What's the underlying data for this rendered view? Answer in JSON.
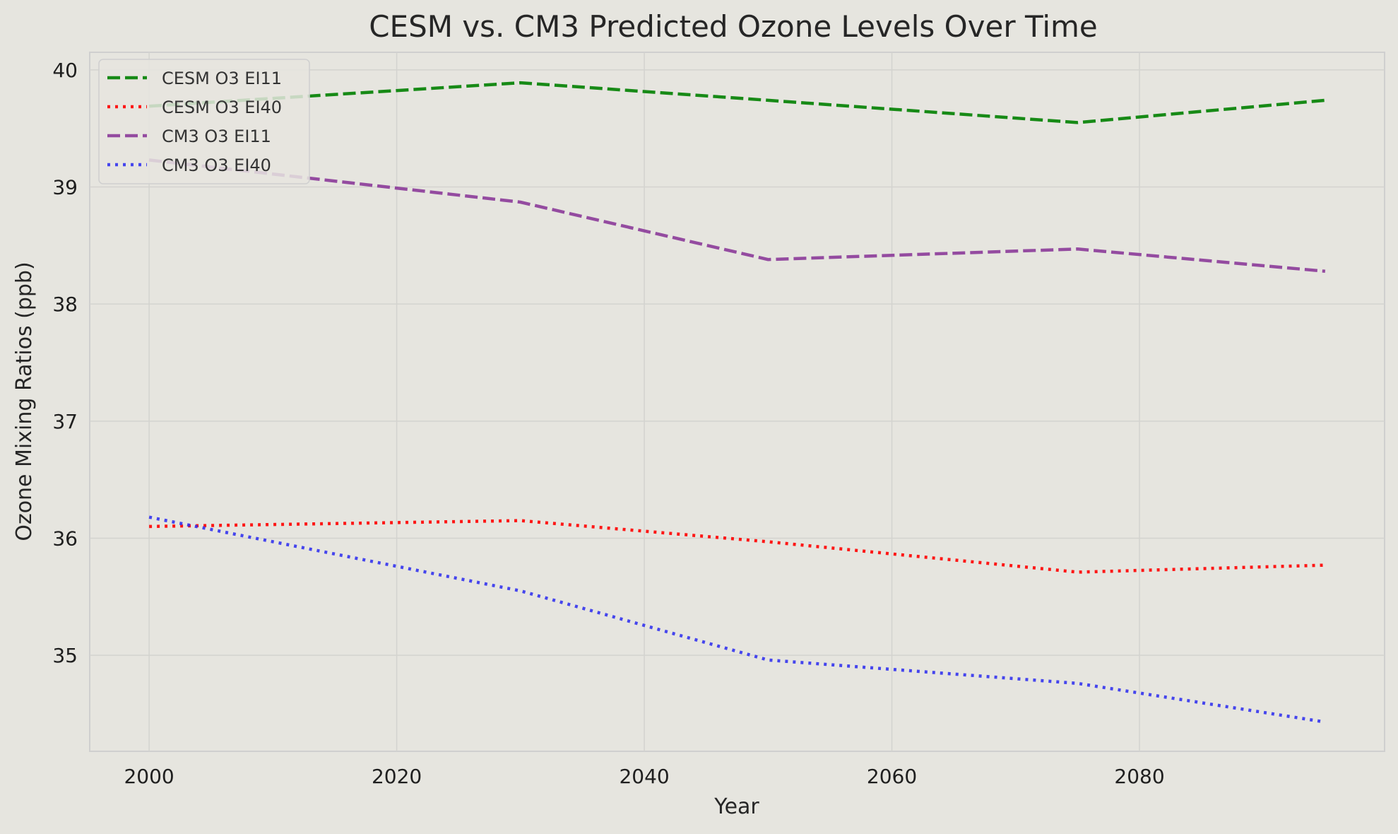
{
  "chart_data": {
    "type": "line",
    "title": "CESM vs. CM3 Predicted Ozone Levels Over Time",
    "xlabel": "Year",
    "ylabel": "Ozone Mixing Ratios (ppb)",
    "x": [
      2000,
      2030,
      2050,
      2075,
      2095
    ],
    "xlim": [
      1995.2,
      2099.8
    ],
    "ylim": [
      34.18,
      40.15
    ],
    "xticks": [
      2000,
      2020,
      2040,
      2060,
      2080
    ],
    "yticks": [
      35,
      36,
      37,
      38,
      39,
      40
    ],
    "grid": true,
    "legend_position": "top-left",
    "series": [
      {
        "name": "CESM O3 EI11",
        "values": [
          39.69,
          39.89,
          39.74,
          39.55,
          39.74
        ],
        "color": "#008000",
        "style": "dashed"
      },
      {
        "name": "CESM O3 EI40",
        "values": [
          36.1,
          36.15,
          35.97,
          35.71,
          35.77
        ],
        "color": "#ff0000",
        "style": "dotted"
      },
      {
        "name": "CM3 O3 EI11",
        "values": [
          39.23,
          38.87,
          38.38,
          38.47,
          38.28
        ],
        "color": "#8b3a99",
        "style": "dashed"
      },
      {
        "name": "CM3 O3 EI40",
        "values": [
          36.18,
          35.55,
          34.96,
          34.76,
          34.43
        ],
        "color": "#3333ee",
        "style": "dotted"
      }
    ]
  }
}
